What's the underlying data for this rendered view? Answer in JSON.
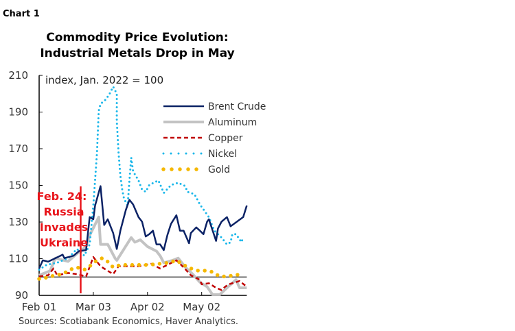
{
  "chart_label": "Chart 1",
  "chart_data": {
    "type": "line",
    "title": [
      "Commodity Price Evolution:",
      "Industrial Metals Drop in May"
    ],
    "ylabel": "index, Jan. 2022 = 100",
    "ylim": [
      90,
      210
    ],
    "yticks": [
      90,
      110,
      130,
      150,
      170,
      190,
      210
    ],
    "xticks": [
      "Feb 01",
      "Mar 03",
      "Apr 02",
      "May 02"
    ],
    "xlim": [
      "Feb 01",
      "May 27"
    ],
    "reference_line": 100,
    "grid": false,
    "legend_placement": "top-right",
    "source": "Sources: Scotiabank Economics, Haver Analytics.",
    "annotation": {
      "date": "Feb 24",
      "lines": [
        "Feb. 24:",
        "Russia",
        "Invades",
        "Ukraine"
      ],
      "color": "#e8151b"
    },
    "series": [
      {
        "name": "Brent Crude",
        "color": "#0b2265",
        "style": "solid",
        "x": [
          "Feb 01",
          "Feb 03",
          "Feb 06",
          "Feb 10",
          "Feb 14",
          "Feb 15",
          "Feb 20",
          "Feb 23",
          "Feb 27",
          "Mar 01",
          "Mar 03",
          "Mar 04",
          "Mar 07",
          "Mar 09",
          "Mar 11",
          "Mar 14",
          "Mar 16",
          "Mar 18",
          "Mar 21",
          "Mar 23",
          "Mar 25",
          "Mar 28",
          "Mar 30",
          "Apr 01",
          "Apr 03",
          "Apr 05",
          "Apr 07",
          "Apr 09",
          "Apr 11",
          "Apr 13",
          "Apr 15",
          "Apr 18",
          "Apr 20",
          "Apr 22",
          "Apr 25",
          "Apr 26",
          "Apr 29",
          "May 01",
          "May 03",
          "May 05",
          "May 06",
          "May 10",
          "May 11",
          "May 13",
          "May 16",
          "May 18",
          "May 25",
          "May 27"
        ],
        "y": [
          104.7,
          109.1,
          108.4,
          110.3,
          112.2,
          110.3,
          111.6,
          114.1,
          114.7,
          132.7,
          131.5,
          139,
          149.6,
          128.4,
          131.5,
          124,
          115.3,
          125.3,
          136.5,
          142.1,
          139.6,
          132.7,
          130.2,
          122.1,
          123.4,
          125.3,
          117.8,
          117.8,
          114.7,
          122.8,
          129,
          133.7,
          125.3,
          125.3,
          118.4,
          124,
          127.1,
          125.3,
          123.4,
          130.2,
          131.5,
          119.7,
          126.5,
          130.2,
          132.7,
          127.7,
          132.7,
          139
        ]
      },
      {
        "name": "Aluminum",
        "color": "#c3c3c3",
        "style": "thick",
        "x": [
          "Feb 01",
          "Feb 07",
          "Feb 10",
          "Feb 17",
          "Feb 22",
          "Feb 27",
          "Mar 01",
          "Mar 06",
          "Mar 07",
          "Mar 11",
          "Mar 15",
          "Mar 16",
          "Mar 20",
          "Mar 24",
          "Mar 26",
          "Mar 29",
          "Apr 02",
          "Apr 07",
          "Apr 09",
          "Apr 11",
          "Apr 16",
          "Apr 19",
          "Apr 23",
          "Apr 27",
          "May 01",
          "May 05",
          "May 08",
          "May 12",
          "May 16",
          "May 21",
          "May 23",
          "May 27"
        ],
        "y": [
          101,
          103.3,
          110.3,
          108.5,
          112.8,
          116.6,
          122.8,
          132.7,
          117.8,
          117.8,
          110.3,
          109.1,
          115.3,
          121.5,
          119,
          120.3,
          116.6,
          114.1,
          111.6,
          107.8,
          109.1,
          110.3,
          105.3,
          101.6,
          97.2,
          94.7,
          90.4,
          90.4,
          94.1,
          98.5,
          94.1,
          94.1
        ]
      },
      {
        "name": "Copper",
        "color": "#c00000",
        "style": "dashed",
        "x": [
          "Feb 01",
          "Feb 06",
          "Feb 09",
          "Feb 11",
          "Feb 17",
          "Feb 22",
          "Feb 27",
          "Mar 03",
          "Mar 07",
          "Mar 10",
          "Mar 14",
          "Mar 17",
          "Mar 22",
          "Mar 28",
          "Apr 04",
          "Apr 09",
          "Apr 13",
          "Apr 18",
          "Apr 22",
          "Apr 26",
          "May 01",
          "May 02",
          "May 06",
          "May 10",
          "May 13",
          "May 15",
          "May 17",
          "May 23",
          "May 27"
        ],
        "y": [
          100.3,
          101,
          104.7,
          101,
          102.2,
          101.6,
          100.3,
          110.9,
          105.9,
          104,
          101.6,
          105.9,
          105.9,
          105.9,
          107.2,
          104.7,
          106.6,
          109.1,
          105.3,
          101,
          98.5,
          96,
          96.6,
          94.1,
          92.9,
          94.7,
          96,
          97.8,
          94.7
        ]
      },
      {
        "name": "Nickel",
        "color": "#1ab7ea",
        "style": "dotted",
        "x": [
          "Feb 01",
          "Feb 05",
          "Feb 11",
          "Feb 17",
          "Feb 22",
          "Feb 26",
          "Mar 01",
          "Mar 03",
          "Mar 05",
          "Mar 06",
          "Mar 07",
          "Mar 10",
          "Mar 12",
          "Mar 14",
          "Mar 16",
          "Mar 16",
          "Mar 17",
          "Mar 18",
          "Mar 19",
          "Mar 20",
          "Mar 22",
          "Mar 23",
          "Mar 24",
          "Mar 25",
          "Mar 28",
          "Mar 30",
          "Apr 01",
          "Apr 03",
          "Apr 08",
          "Apr 10",
          "Apr 11",
          "Apr 15",
          "Apr 19",
          "Apr 23",
          "Apr 24",
          "Apr 28",
          "May 01",
          "May 06",
          "May 09",
          "May 13",
          "May 16",
          "May 18",
          "May 19",
          "May 21",
          "May 24",
          "May 25"
        ],
        "y": [
          104,
          106.6,
          107.8,
          110.3,
          115.3,
          111.6,
          117.8,
          139,
          167.6,
          190.7,
          194.4,
          196.9,
          200,
          203.8,
          200,
          185,
          167.6,
          155.2,
          147.7,
          142.7,
          139,
          152.7,
          165.1,
          157.7,
          152.7,
          147.7,
          146.5,
          150.2,
          152.7,
          148.3,
          145.8,
          150.2,
          151.4,
          149.6,
          146.5,
          145.2,
          139.6,
          132.7,
          125.3,
          121.5,
          117.8,
          119,
          123.4,
          123.4,
          119,
          121.5
        ]
      },
      {
        "name": "Gold",
        "color": "#f5b800",
        "style": "bigdots",
        "x": [
          "Feb 01",
          "Feb 05",
          "Feb 10",
          "Feb 14",
          "Feb 18",
          "Feb 22",
          "Feb 26",
          "Mar 01",
          "Mar 05",
          "Mar 08",
          "Mar 11",
          "Mar 14",
          "Mar 18",
          "Mar 22",
          "Mar 28",
          "Apr 02",
          "Apr 08",
          "Apr 14",
          "Apr 18",
          "Apr 22",
          "Apr 26",
          "Apr 30",
          "May 04",
          "May 08",
          "May 12",
          "May 16",
          "May 20",
          "May 25"
        ],
        "y": [
          99,
          99.7,
          101,
          101.6,
          104,
          105.3,
          104,
          105.9,
          109.1,
          110.3,
          108.4,
          105.3,
          106.6,
          106.6,
          106.6,
          106.6,
          107.2,
          107.8,
          109.1,
          106.6,
          104.7,
          103.5,
          103.5,
          102.8,
          100.3,
          100.3,
          101,
          101.6
        ]
      }
    ]
  }
}
